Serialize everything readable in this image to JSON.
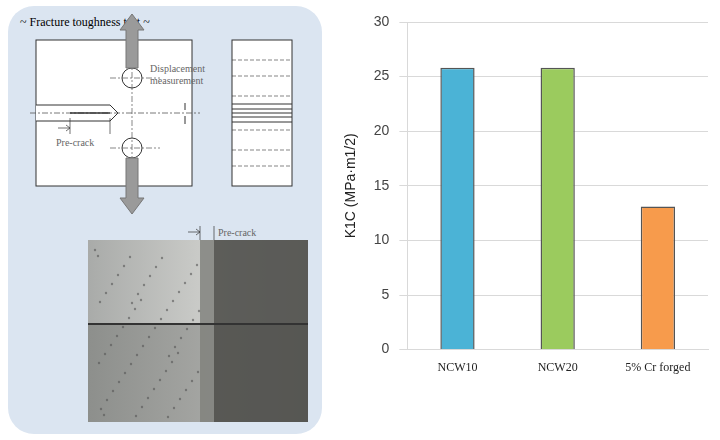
{
  "chart_data": {
    "type": "bar",
    "y_label": "K1C (MPa·m1/2)",
    "categories": [
      "NCW10",
      "NCW20",
      "5% Cr forged"
    ],
    "values": [
      25.8,
      25.8,
      13.1
    ],
    "colors": [
      "#4bb3d6",
      "#9bcb5e",
      "#f79b4c"
    ],
    "ylim": [
      0,
      30
    ],
    "yticks": [
      0,
      5,
      10,
      15,
      20,
      25,
      30
    ],
    "grid": true
  },
  "diagram": {
    "title": "~ Fracture toughness test ~",
    "displacement_label": "Displacement measurement",
    "precrack_label": "Pre-crack",
    "photo_label": "Pre-crack"
  }
}
